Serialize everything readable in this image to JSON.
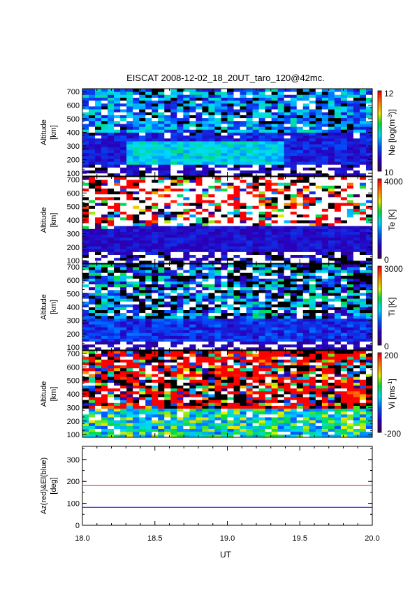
{
  "title": "EISCAT 2008-12-02_18_20UT_taro_120@42mc.",
  "xlabel": "UT",
  "x_ticks": [
    "18.0",
    "18.5",
    "19.0",
    "19.5",
    "20.0"
  ],
  "chart_data": [
    {
      "type": "heatmap",
      "name": "ne",
      "ylabel": "Altitude",
      "yunit": "[km]",
      "xlim": [
        18.0,
        20.0
      ],
      "ylim": [
        80,
        720
      ],
      "y_ticks": [
        "100",
        "200",
        "300",
        "400",
        "500",
        "600",
        "700"
      ],
      "colorbar_label": "Ne [log(m",
      "colorbar_sup": "-3",
      "colorbar_close": ")]",
      "cmin": "10",
      "cmax": "12"
    },
    {
      "type": "heatmap",
      "name": "te",
      "ylabel": "Altitude",
      "yunit": "[km]",
      "xlim": [
        18.0,
        20.0
      ],
      "ylim": [
        80,
        720
      ],
      "y_ticks": [
        "100",
        "200",
        "300",
        "400",
        "500",
        "600",
        "700"
      ],
      "colorbar_label": "Te [K]",
      "cmin": "0",
      "cmax": "4000"
    },
    {
      "type": "heatmap",
      "name": "ti",
      "ylabel": "Altitude",
      "yunit": "[km]",
      "xlim": [
        18.0,
        20.0
      ],
      "ylim": [
        80,
        720
      ],
      "y_ticks": [
        "100",
        "200",
        "300",
        "400",
        "500",
        "600",
        "700"
      ],
      "colorbar_label": "Ti [K]",
      "cmin": "0",
      "cmax": "3000"
    },
    {
      "type": "heatmap",
      "name": "vi",
      "ylabel": "Altitude",
      "yunit": "[km]",
      "xlim": [
        18.0,
        20.0
      ],
      "ylim": [
        80,
        720
      ],
      "y_ticks": [
        "100",
        "200",
        "300",
        "400",
        "500",
        "600",
        "700"
      ],
      "colorbar_label": "Vi [ms",
      "colorbar_sup": "-1",
      "colorbar_close": "]",
      "cmin": "-200",
      "cmax": "200"
    },
    {
      "type": "line",
      "name": "azel",
      "ylabel": "Az(red)&El(blue)",
      "yunit": "[deg]",
      "xlim": [
        18.0,
        20.0
      ],
      "ylim": [
        0,
        360
      ],
      "y_ticks": [
        "0",
        "100",
        "200",
        "300"
      ],
      "series": [
        {
          "color": "#ff0000",
          "x": [
            18.0,
            20.0
          ],
          "y": [
            182,
            182
          ]
        },
        {
          "color": "#0000ff",
          "x": [
            18.0,
            20.0
          ],
          "y": [
            82,
            82
          ]
        }
      ]
    }
  ]
}
